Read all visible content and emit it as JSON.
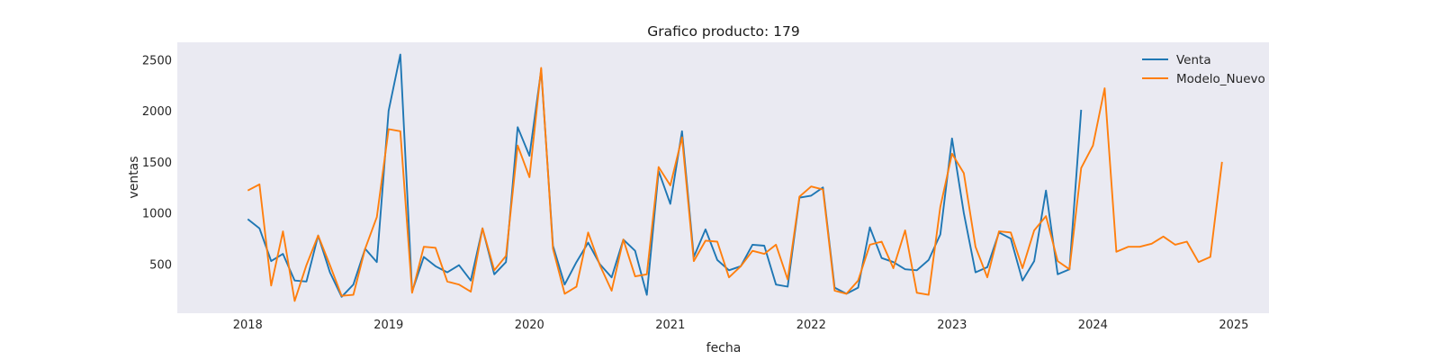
{
  "chart_data": {
    "type": "line",
    "title": "Grafico producto: 179",
    "xlabel": "fecha",
    "ylabel": "ventas",
    "x_start": "2018-01",
    "x_ticks": [
      "2018",
      "2019",
      "2020",
      "2021",
      "2022",
      "2023",
      "2024",
      "2025"
    ],
    "y_ticks": [
      500,
      1000,
      1500,
      2000,
      2500
    ],
    "xlim": [
      "2017-07",
      "2025-04"
    ],
    "ylim": [
      20,
      2670
    ],
    "grid": false,
    "background": "#eaeaf2",
    "legend_position": "top-right",
    "series": [
      {
        "name": "Venta",
        "color": "#1f77b4",
        "values": [
          940,
          850,
          530,
          600,
          340,
          330,
          780,
          420,
          180,
          300,
          650,
          520,
          2000,
          2550,
          230,
          570,
          480,
          420,
          490,
          340,
          850,
          400,
          520,
          1840,
          1560,
          2400,
          680,
          300,
          520,
          710,
          500,
          370,
          740,
          630,
          200,
          1410,
          1090,
          1800,
          570,
          840,
          540,
          440,
          480,
          690,
          680,
          300,
          280,
          1150,
          1170,
          1250,
          270,
          210,
          270,
          860,
          560,
          520,
          450,
          440,
          540,
          790,
          1730,
          1000,
          420,
          470,
          810,
          750,
          340,
          530,
          1220,
          400,
          450,
          2010
        ]
      },
      {
        "name": "Modelo_Nuevo",
        "color": "#ff7f0e",
        "values": [
          1220,
          1280,
          290,
          820,
          140,
          490,
          780,
          490,
          190,
          200,
          650,
          960,
          1820,
          1800,
          220,
          670,
          660,
          330,
          300,
          230,
          850,
          440,
          580,
          1660,
          1350,
          2420,
          650,
          210,
          280,
          810,
          490,
          240,
          740,
          380,
          400,
          1450,
          1270,
          1740,
          530,
          730,
          720,
          370,
          480,
          630,
          600,
          690,
          350,
          1160,
          1260,
          1230,
          240,
          210,
          340,
          690,
          720,
          460,
          830,
          220,
          200,
          1060,
          1580,
          1390,
          670,
          370,
          820,
          810,
          460,
          830,
          970,
          530,
          450,
          1440,
          1660,
          2220,
          620,
          670,
          670,
          700,
          770,
          690,
          720,
          520,
          570,
          1500
        ]
      }
    ]
  }
}
